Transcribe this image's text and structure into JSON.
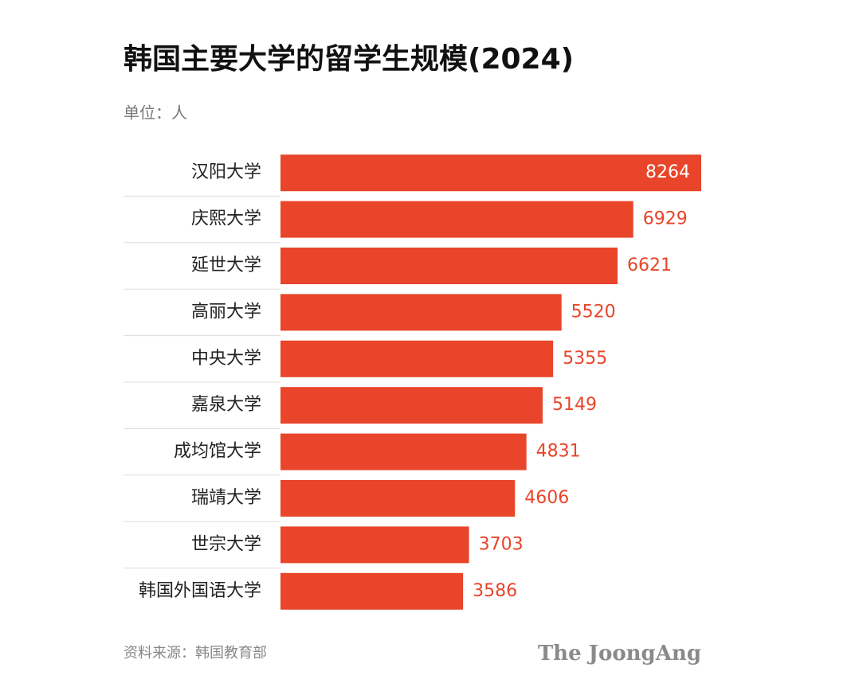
{
  "chart_data": {
    "type": "bar",
    "orientation": "horizontal",
    "title": "韩国主要大学的留学生规模(2024)",
    "subtitle": "单位：人",
    "source": "资料来源：韩国教育部",
    "brand": "The JoongAng",
    "categories": [
      "汉阳大学",
      "庆熙大学",
      "延世大学",
      "高丽大学",
      "中央大学",
      "嘉泉大学",
      "成均馆大学",
      "瑞靖大学",
      "世宗大学",
      "韩国外国语大学"
    ],
    "values": [
      8264,
      6929,
      6621,
      5520,
      5355,
      5149,
      4831,
      4606,
      3703,
      3586
    ],
    "color": "#e8452a"
  }
}
